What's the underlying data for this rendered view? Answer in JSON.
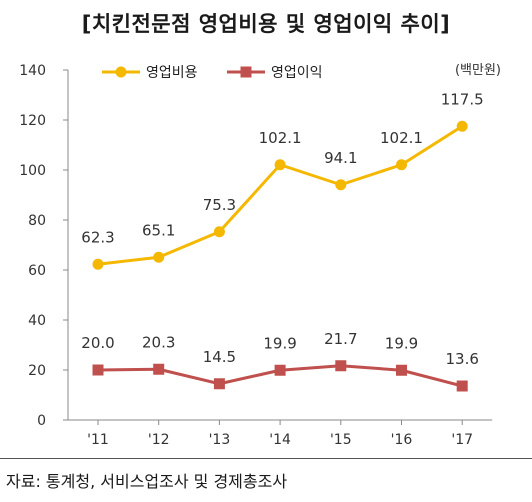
{
  "title": "[치킨전문점 영업비용 및 영업이익 추이]",
  "source": "자료: 통계청, 서비스업조사 및 경제총조사",
  "colors": {
    "cost": "#F5B800",
    "profit": "#C0504D",
    "axis": "#888888"
  },
  "chart_data": {
    "type": "line",
    "categories": [
      "'11",
      "'12",
      "'13",
      "'14",
      "'15",
      "'16",
      "'17"
    ],
    "series": [
      {
        "name": "영업비용",
        "values": [
          62.3,
          65.1,
          75.3,
          102.1,
          94.1,
          102.1,
          117.5
        ],
        "labels": [
          "62.3",
          "65.1",
          "75.3",
          "102.1",
          "94.1",
          "102.1",
          "117.5"
        ]
      },
      {
        "name": "영업이익",
        "values": [
          20.0,
          20.3,
          14.5,
          19.9,
          21.7,
          19.9,
          13.6
        ],
        "labels": [
          "20.0",
          "20.3",
          "14.5",
          "19.9",
          "21.7",
          "19.9",
          "13.6"
        ]
      }
    ],
    "unit": "(백만원)",
    "ylim": [
      0,
      140
    ],
    "yticks": [
      "0",
      "20",
      "40",
      "60",
      "80",
      "100",
      "120",
      "140"
    ],
    "grid": false,
    "legend": "top-left"
  }
}
